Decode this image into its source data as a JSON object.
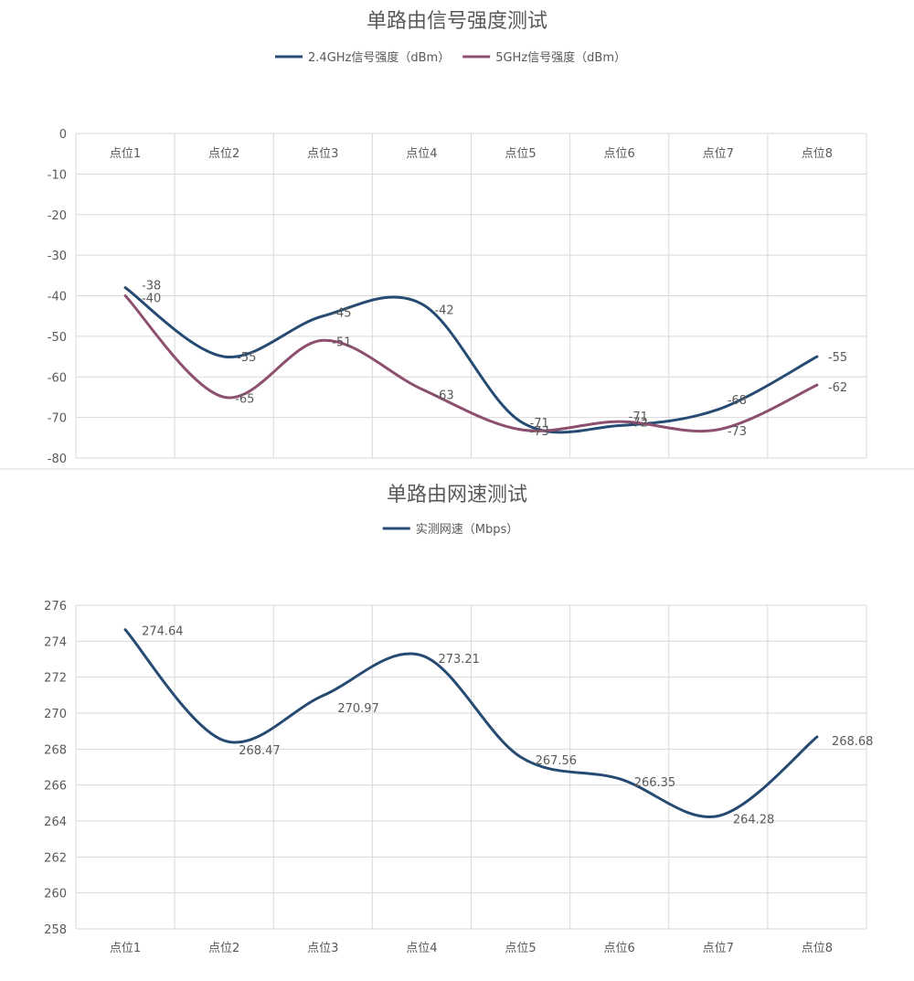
{
  "chart_data": [
    {
      "type": "line",
      "title": "单路由信号强度测试",
      "categories": [
        "点位1",
        "点位2",
        "点位3",
        "点位4",
        "点位5",
        "点位6",
        "点位7",
        "点位8"
      ],
      "series": [
        {
          "name": "2.4GHz信号强度（dBm）",
          "color": "#264b73",
          "values": [
            -38,
            -55,
            -45,
            -42,
            -71,
            -72,
            -68,
            -55
          ]
        },
        {
          "name": "5GHz信号强度（dBm）",
          "color": "#8c4f6e",
          "values": [
            -40,
            -65,
            -51,
            -63,
            -73,
            -71,
            -73,
            -62
          ]
        }
      ],
      "ylim": [
        -80,
        0
      ],
      "yticks": [
        0,
        -10,
        -20,
        -30,
        -40,
        -50,
        -60,
        -70,
        -80
      ],
      "xaxis_position": "top",
      "grid": true,
      "legend": "top-center",
      "smooth": true
    },
    {
      "type": "line",
      "title": "单路由网速测试",
      "categories": [
        "点位1",
        "点位2",
        "点位3",
        "点位4",
        "点位5",
        "点位6",
        "点位7",
        "点位8"
      ],
      "series": [
        {
          "name": "实测网速（Mbps）",
          "color": "#264b73",
          "values": [
            274.64,
            268.47,
            270.97,
            273.21,
            267.56,
            266.35,
            264.28,
            268.68
          ]
        }
      ],
      "ylim": [
        258,
        276
      ],
      "yticks": [
        276,
        274,
        272,
        270,
        268,
        266,
        264,
        262,
        260,
        258
      ],
      "xaxis_position": "bottom",
      "grid": true,
      "legend": "top-center",
      "smooth": true
    }
  ]
}
